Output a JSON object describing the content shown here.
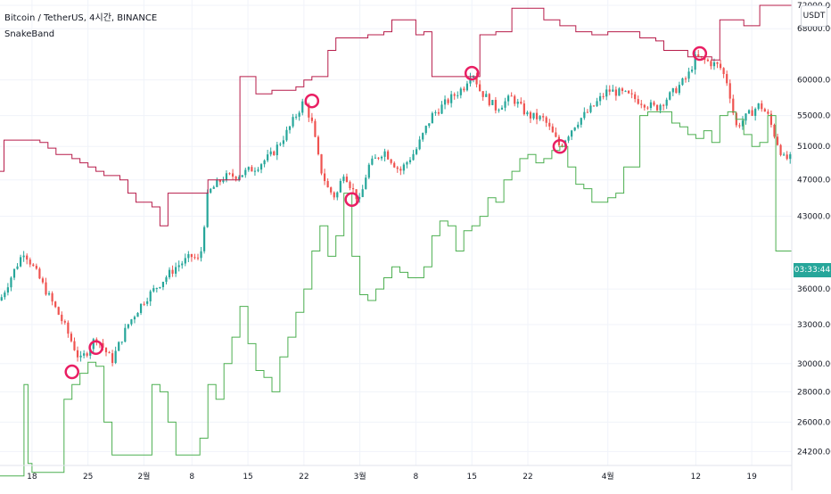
{
  "header": {
    "symbol_line": "Bitcoin / TetherUS, 4시간, BINANCE",
    "indicator_name": "SnakeBand",
    "currency_badge": "USDT",
    "countdown": "03:33:44"
  },
  "colors": {
    "bull": "#26a69a",
    "bear": "#ef5350",
    "upper_band": "#b71c4a",
    "lower_band": "#4caf50",
    "marker": "#e91e63",
    "countdown_bg": "#26a69a",
    "grid": "#f0f3fa"
  },
  "chart_data": {
    "type": "line",
    "title": "",
    "xlabel": "",
    "ylabel": "",
    "y_scale": "log",
    "ylim": [
      23800,
      72000
    ],
    "grid": true,
    "x_ticks": [
      {
        "label": "18",
        "t": 4.0
      },
      {
        "label": "25",
        "t": 11.0
      },
      {
        "label": "2월",
        "t": 18.0
      },
      {
        "label": "8",
        "t": 24.0
      },
      {
        "label": "15",
        "t": 31.0
      },
      {
        "label": "22",
        "t": 38.0
      },
      {
        "label": "3월",
        "t": 45.0
      },
      {
        "label": "8",
        "t": 52.0
      },
      {
        "label": "15",
        "t": 59.0
      },
      {
        "label": "22",
        "t": 66.0
      },
      {
        "label": "4월",
        "t": 76.0
      },
      {
        "label": "12",
        "t": 87.0
      },
      {
        "label": "19",
        "t": 94.0
      }
    ],
    "y_ticks": [
      {
        "label": "24200.00",
        "v": 24200
      },
      {
        "label": "26000.00",
        "v": 26000
      },
      {
        "label": "28000.00",
        "v": 28000
      },
      {
        "label": "30000.00",
        "v": 30000
      },
      {
        "label": "33000.00",
        "v": 33000
      },
      {
        "label": "36000.00",
        "v": 36000
      },
      {
        "label": "43000.00",
        "v": 43000
      },
      {
        "label": "47000.00",
        "v": 47000
      },
      {
        "label": "51000.00",
        "v": 51000
      },
      {
        "label": "55000.00",
        "v": 55000
      },
      {
        "label": "60000.00",
        "v": 60000
      },
      {
        "label": "68000.00",
        "v": 68000
      },
      {
        "label": "72000.00",
        "v": 72000
      }
    ],
    "price_path": [
      [
        0,
        35000
      ],
      [
        3,
        39500
      ],
      [
        6,
        35500
      ],
      [
        8,
        33000
      ],
      [
        10,
        30200
      ],
      [
        11,
        31000
      ],
      [
        12,
        32000
      ],
      [
        14,
        30200
      ],
      [
        16,
        33000
      ],
      [
        18,
        35000
      ],
      [
        20,
        36500
      ],
      [
        22,
        38000
      ],
      [
        24,
        39000
      ],
      [
        25,
        38500
      ],
      [
        26,
        45500
      ],
      [
        28,
        47300
      ],
      [
        30,
        47600
      ],
      [
        32,
        48500
      ],
      [
        34,
        50000
      ],
      [
        36,
        53000
      ],
      [
        38,
        57000
      ],
      [
        39,
        54000
      ],
      [
        40,
        48500
      ],
      [
        41,
        46000
      ],
      [
        42,
        45000
      ],
      [
        43,
        48000
      ],
      [
        44,
        46000
      ],
      [
        45,
        44500
      ],
      [
        46,
        48500
      ],
      [
        48,
        50500
      ],
      [
        50,
        48000
      ],
      [
        52,
        50500
      ],
      [
        54,
        55000
      ],
      [
        56,
        57000
      ],
      [
        58,
        59000
      ],
      [
        59,
        61500
      ],
      [
        60,
        58500
      ],
      [
        62,
        56000
      ],
      [
        64,
        57500
      ],
      [
        66,
        55000
      ],
      [
        68,
        54500
      ],
      [
        70,
        51000
      ],
      [
        72,
        54000
      ],
      [
        74,
        56000
      ],
      [
        76,
        58500
      ],
      [
        78,
        58000
      ],
      [
        80,
        57000
      ],
      [
        82,
        56000
      ],
      [
        84,
        58000
      ],
      [
        86,
        60500
      ],
      [
        87,
        63500
      ],
      [
        88,
        63000
      ],
      [
        90,
        62000
      ],
      [
        91,
        59500
      ],
      [
        92,
        53500
      ],
      [
        93,
        54500
      ],
      [
        95,
        56500
      ],
      [
        96,
        55000
      ],
      [
        97,
        52000
      ],
      [
        98,
        49500
      ]
    ],
    "series": [
      {
        "name": "upper",
        "color": "#b71c4a",
        "points": [
          [
            0,
            48000
          ],
          [
            0.5,
            51800
          ],
          [
            4,
            51800
          ],
          [
            5,
            51500
          ],
          [
            6,
            50800
          ],
          [
            7,
            50000
          ],
          [
            9,
            49500
          ],
          [
            10,
            49000
          ],
          [
            11,
            48500
          ],
          [
            12,
            48000
          ],
          [
            13,
            47500
          ],
          [
            15,
            47000
          ],
          [
            16,
            45500
          ],
          [
            17,
            44500
          ],
          [
            18,
            44500
          ],
          [
            19,
            44000
          ],
          [
            20,
            42000
          ],
          [
            20.5,
            42000
          ],
          [
            21,
            45500
          ],
          [
            25,
            45500
          ],
          [
            26,
            47000
          ],
          [
            30,
            60500
          ],
          [
            32,
            58000
          ],
          [
            34,
            58500
          ],
          [
            36,
            58500
          ],
          [
            37,
            59000
          ],
          [
            38,
            60000
          ],
          [
            39,
            60500
          ],
          [
            40,
            60500
          ],
          [
            41,
            64500
          ],
          [
            42,
            66500
          ],
          [
            45,
            66500
          ],
          [
            46,
            67000
          ],
          [
            48,
            67500
          ],
          [
            49,
            69500
          ],
          [
            51,
            69500
          ],
          [
            52,
            67000
          ],
          [
            53,
            67500
          ],
          [
            54,
            60500
          ],
          [
            59,
            60500
          ],
          [
            60,
            67000
          ],
          [
            62,
            67500
          ],
          [
            64,
            71500
          ],
          [
            67,
            71500
          ],
          [
            68,
            69500
          ],
          [
            70,
            68500
          ],
          [
            72,
            67500
          ],
          [
            74,
            67000
          ],
          [
            76,
            67500
          ],
          [
            78,
            67500
          ],
          [
            80,
            66500
          ],
          [
            82,
            66000
          ],
          [
            83,
            64500
          ],
          [
            85,
            64500
          ],
          [
            86,
            63500
          ],
          [
            87,
            63500
          ],
          [
            89,
            63000
          ],
          [
            90,
            69500
          ],
          [
            92,
            69500
          ],
          [
            93,
            68500
          ],
          [
            94,
            68500
          ],
          [
            95,
            72000
          ],
          [
            99,
            72000
          ]
        ]
      },
      {
        "name": "lower",
        "color": "#4caf50",
        "points": [
          [
            0,
            22800
          ],
          [
            1,
            22800
          ],
          [
            2,
            22800
          ],
          [
            3,
            28500
          ],
          [
            3.5,
            23500
          ],
          [
            4,
            23000
          ],
          [
            6,
            23000
          ],
          [
            7,
            23000
          ],
          [
            8,
            27500
          ],
          [
            9,
            28500
          ],
          [
            10,
            29300
          ],
          [
            11,
            30100
          ],
          [
            12,
            29800
          ],
          [
            13,
            26000
          ],
          [
            14,
            24000
          ],
          [
            15,
            24000
          ],
          [
            16,
            24000
          ],
          [
            17,
            24000
          ],
          [
            18,
            24000
          ],
          [
            19,
            28500
          ],
          [
            20,
            28000
          ],
          [
            21,
            26000
          ],
          [
            22,
            24000
          ],
          [
            24,
            24000
          ],
          [
            25,
            25000
          ],
          [
            26,
            28500
          ],
          [
            27,
            27500
          ],
          [
            28,
            30000
          ],
          [
            29,
            32000
          ],
          [
            30,
            34500
          ],
          [
            31,
            31500
          ],
          [
            32,
            29500
          ],
          [
            33,
            29000
          ],
          [
            34,
            28000
          ],
          [
            35,
            30500
          ],
          [
            36,
            32000
          ],
          [
            37,
            34000
          ],
          [
            38,
            36000
          ],
          [
            39,
            39500
          ],
          [
            40,
            42000
          ],
          [
            41,
            39000
          ],
          [
            42,
            41000
          ],
          [
            43,
            45500
          ],
          [
            44,
            39000
          ],
          [
            45,
            35500
          ],
          [
            46,
            35000
          ],
          [
            47,
            36000
          ],
          [
            48,
            37000
          ],
          [
            49,
            38000
          ],
          [
            50,
            37500
          ],
          [
            51,
            37000
          ],
          [
            52,
            37000
          ],
          [
            53,
            38000
          ],
          [
            54,
            41000
          ],
          [
            55,
            42500
          ],
          [
            56,
            42000
          ],
          [
            57,
            39500
          ],
          [
            58,
            41500
          ],
          [
            59,
            42000
          ],
          [
            60,
            43000
          ],
          [
            61,
            45000
          ],
          [
            62,
            44500
          ],
          [
            63,
            47000
          ],
          [
            64,
            48000
          ],
          [
            65,
            49500
          ],
          [
            66,
            50000
          ],
          [
            67,
            49000
          ],
          [
            68,
            49500
          ],
          [
            69,
            50500
          ],
          [
            70,
            51000
          ],
          [
            71,
            48500
          ],
          [
            72,
            46500
          ],
          [
            73,
            46000
          ],
          [
            74,
            44500
          ],
          [
            75,
            44500
          ],
          [
            76,
            45000
          ],
          [
            77,
            45500
          ],
          [
            78,
            48500
          ],
          [
            79,
            48500
          ],
          [
            80,
            55000
          ],
          [
            81,
            55500
          ],
          [
            82,
            55500
          ],
          [
            84,
            54000
          ],
          [
            85,
            53500
          ],
          [
            86,
            52500
          ],
          [
            87,
            52000
          ],
          [
            88,
            53000
          ],
          [
            89,
            51500
          ],
          [
            90,
            55000
          ],
          [
            91,
            55500
          ],
          [
            92,
            54500
          ],
          [
            93,
            52500
          ],
          [
            94,
            51000
          ],
          [
            95,
            51500
          ],
          [
            96,
            55000
          ],
          [
            97,
            39500
          ],
          [
            99,
            39500
          ]
        ]
      }
    ],
    "markers": [
      {
        "t": 9.0,
        "v": 29400
      },
      {
        "t": 12.0,
        "v": 31200
      },
      {
        "t": 39.0,
        "v": 57000
      },
      {
        "t": 44.0,
        "v": 44800
      },
      {
        "t": 59.0,
        "v": 61000
      },
      {
        "t": 70.0,
        "v": 51000
      },
      {
        "t": 87.5,
        "v": 64000
      }
    ]
  }
}
